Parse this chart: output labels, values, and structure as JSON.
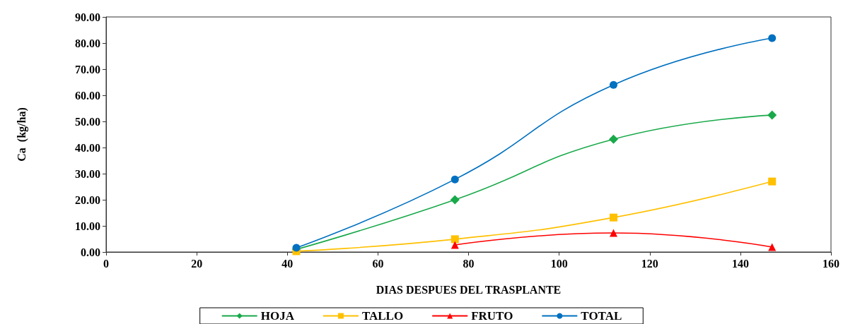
{
  "chart_data": {
    "type": "line",
    "xlabel": "DIAS DESPUES DEL TRASPLANTE",
    "ylabel": "Ca  (kg/ha)",
    "x": [
      42,
      77,
      112,
      147
    ],
    "series": [
      {
        "name": "HOJA",
        "color": "#19a94a",
        "marker": "diamond",
        "values": [
          1.0,
          20.0,
          43.2,
          52.4
        ]
      },
      {
        "name": "TALLO",
        "color": "#ffc000",
        "marker": "square",
        "values": [
          0.3,
          4.9,
          13.2,
          27.0
        ]
      },
      {
        "name": "FRUTO",
        "color": "#ff0000",
        "marker": "triangle",
        "values": [
          null,
          2.7,
          7.3,
          1.9
        ]
      },
      {
        "name": "TOTAL",
        "color": "#0070c0",
        "marker": "circle",
        "values": [
          1.6,
          27.8,
          64.0,
          81.9
        ]
      }
    ],
    "xlim": [
      0,
      160
    ],
    "xticks": [
      0,
      20,
      40,
      60,
      80,
      100,
      120,
      140,
      160
    ],
    "ylim": [
      0,
      90
    ],
    "yticks": [
      {
        "value": 0,
        "label": "0.00"
      },
      {
        "value": 10,
        "label": "10.00"
      },
      {
        "value": 20,
        "label": "20.00"
      },
      {
        "value": 30,
        "label": "30.00"
      },
      {
        "value": 40,
        "label": "40.00"
      },
      {
        "value": 50,
        "label": "50.00"
      },
      {
        "value": 60,
        "label": "60.00"
      },
      {
        "value": 70,
        "label": "70.00"
      },
      {
        "value": 80,
        "label": "80.00"
      },
      {
        "value": 90,
        "label": "90.00"
      }
    ],
    "grid": false,
    "legend": "bottom"
  }
}
